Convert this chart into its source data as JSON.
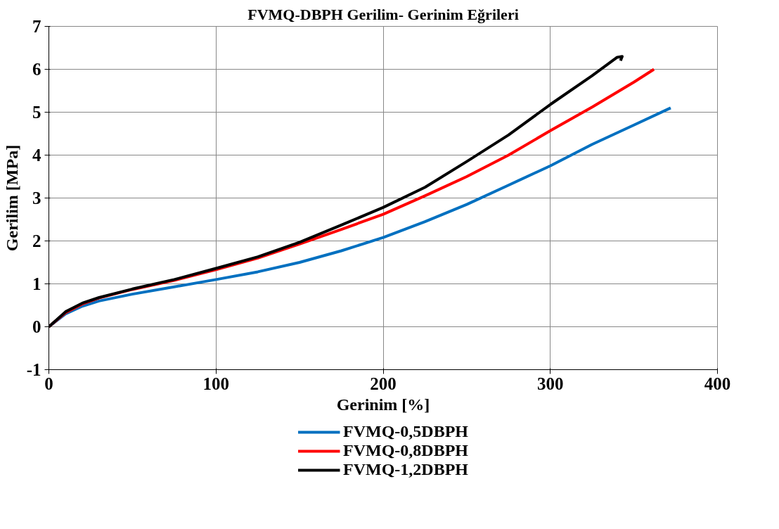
{
  "chart_data": {
    "type": "line",
    "title": "FVMQ-DBPH Gerilim- Gerinim Eğrileri",
    "xlabel": "Gerinim [%]",
    "ylabel": "Gerilim [MPa]",
    "xlim": [
      0,
      400
    ],
    "xticks": [
      0,
      100,
      200,
      300,
      400
    ],
    "ylim": [
      -1,
      7
    ],
    "yticks": [
      -1,
      0,
      1,
      2,
      3,
      4,
      5,
      6,
      7
    ],
    "grid": true,
    "legend": "bottom",
    "marker": "none",
    "line_style": "solid",
    "series": [
      {
        "name": "FVMQ-0,5DBPH",
        "color": "#0070c0",
        "x": [
          0,
          10,
          20,
          30,
          50,
          75,
          100,
          125,
          150,
          175,
          200,
          225,
          250,
          275,
          300,
          325,
          350,
          372
        ],
        "values": [
          0,
          0.3,
          0.48,
          0.6,
          0.76,
          0.93,
          1.1,
          1.28,
          1.5,
          1.77,
          2.08,
          2.45,
          2.85,
          3.3,
          3.75,
          4.25,
          4.7,
          5.1
        ]
      },
      {
        "name": "FVMQ-0,8DBPH",
        "color": "#ff0000",
        "x": [
          0,
          10,
          20,
          30,
          50,
          75,
          100,
          125,
          150,
          175,
          200,
          225,
          250,
          275,
          300,
          325,
          350,
          362
        ],
        "values": [
          0,
          0.33,
          0.53,
          0.67,
          0.87,
          1.08,
          1.33,
          1.6,
          1.93,
          2.27,
          2.62,
          3.05,
          3.5,
          4.0,
          4.57,
          5.12,
          5.7,
          6.0
        ]
      },
      {
        "name": "FVMQ-1,2DBPH",
        "color": "#000000",
        "x": [
          0,
          10,
          20,
          30,
          50,
          75,
          100,
          125,
          150,
          175,
          200,
          225,
          250,
          275,
          300,
          325,
          340,
          343,
          342
        ],
        "values": [
          0,
          0.35,
          0.55,
          0.68,
          0.88,
          1.1,
          1.36,
          1.63,
          1.97,
          2.37,
          2.78,
          3.25,
          3.85,
          4.47,
          5.18,
          5.85,
          6.28,
          6.3,
          6.2
        ]
      }
    ]
  }
}
